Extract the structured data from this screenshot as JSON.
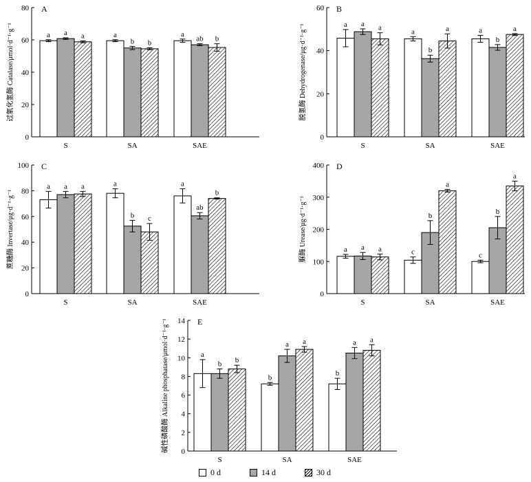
{
  "legend": [
    "0 d",
    "14 d",
    "30 d"
  ],
  "colors": {
    "d0": "#ffffff",
    "d14": "#a6a6a6",
    "d30": "hatch",
    "stroke": "#000000"
  },
  "chart_data": [
    {
      "type": "bar",
      "panel": "A",
      "ylabel": "过氧化氢酶 Catalase/μmol·d⁻¹·g⁻¹",
      "categories": [
        "S",
        "SA",
        "SAE"
      ],
      "ylim": [
        0,
        80
      ],
      "yticks": [
        0,
        20,
        40,
        60,
        80
      ],
      "series": [
        {
          "name": "0 d",
          "values": [
            59.5,
            59.5,
            59.5
          ],
          "errors": [
            0.6,
            0.6,
            1.0
          ],
          "letters": [
            "a",
            "a",
            "a"
          ]
        },
        {
          "name": "14 d",
          "values": [
            60.8,
            55.0,
            57.0
          ],
          "errors": [
            0.5,
            1.0,
            0.6
          ],
          "letters": [
            "a",
            "b",
            "ab"
          ]
        },
        {
          "name": "30 d",
          "values": [
            58.8,
            54.5,
            55.3
          ],
          "errors": [
            0.6,
            0.6,
            2.3
          ],
          "letters": [
            "a",
            "b",
            "b"
          ]
        }
      ]
    },
    {
      "type": "bar",
      "panel": "B",
      "ylabel": "脱氢酶 Dehydrogenase/μg·d⁻¹·g⁻¹",
      "categories": [
        "S",
        "SA",
        "SAE"
      ],
      "ylim": [
        0,
        60
      ],
      "yticks": [
        0,
        20,
        40,
        60
      ],
      "series": [
        {
          "name": "0 d",
          "values": [
            45.8,
            45.5,
            45.5
          ],
          "errors": [
            4.0,
            1.0,
            1.6
          ],
          "letters": [
            "a",
            "a",
            "a"
          ]
        },
        {
          "name": "14 d",
          "values": [
            48.8,
            36.3,
            41.5
          ],
          "errors": [
            1.3,
            1.6,
            1.3
          ],
          "letters": [
            "a",
            "b",
            "b"
          ]
        },
        {
          "name": "30 d",
          "values": [
            45.5,
            44.5,
            47.5
          ],
          "errors": [
            2.8,
            3.3,
            0.4
          ],
          "letters": [
            "a",
            "a",
            "a"
          ]
        }
      ]
    },
    {
      "type": "bar",
      "panel": "C",
      "ylabel": "蔗糖酶 Invertase/μg·d⁻¹·g⁻¹",
      "categories": [
        "S",
        "SA",
        "SAE"
      ],
      "ylim": [
        0,
        100
      ],
      "yticks": [
        0,
        20,
        40,
        60,
        80,
        100
      ],
      "series": [
        {
          "name": "0 d",
          "values": [
            73.0,
            78.0,
            76.0
          ],
          "errors": [
            6.5,
            3.5,
            5.5
          ],
          "letters": [
            "a",
            "a",
            "a"
          ]
        },
        {
          "name": "14 d",
          "values": [
            77.0,
            52.5,
            60.5
          ],
          "errors": [
            2.5,
            4.5,
            2.5
          ],
          "letters": [
            "a",
            "b",
            "ab"
          ]
        },
        {
          "name": "30 d",
          "values": [
            77.5,
            48.0,
            74.0
          ],
          "errors": [
            2.0,
            6.5,
            0.5
          ],
          "letters": [
            "a",
            "c",
            "b"
          ]
        }
      ]
    },
    {
      "type": "bar",
      "panel": "D",
      "ylabel": "脲酶 Urease/μg·d⁻¹·g⁻¹",
      "categories": [
        "S",
        "SA",
        "SAE"
      ],
      "ylim": [
        0,
        400
      ],
      "yticks": [
        0,
        100,
        200,
        300,
        400
      ],
      "series": [
        {
          "name": "0 d",
          "values": [
            116,
            104,
            100
          ],
          "errors": [
            6,
            10,
            4
          ],
          "letters": [
            "a",
            "c",
            "c"
          ]
        },
        {
          "name": "14 d",
          "values": [
            117,
            190,
            205
          ],
          "errors": [
            11,
            37,
            35
          ],
          "letters": [
            "a",
            "b",
            "b"
          ]
        },
        {
          "name": "30 d",
          "values": [
            114,
            320,
            335
          ],
          "errors": [
            9,
            4,
            15
          ],
          "letters": [
            "a",
            "a",
            "a"
          ]
        }
      ]
    },
    {
      "type": "bar",
      "panel": "E",
      "ylabel": "碱性磷酸酶 Alkaline phosphatase/μmol·d⁻¹·g⁻¹",
      "categories": [
        "S",
        "SA",
        "SAE"
      ],
      "ylim": [
        0,
        14
      ],
      "yticks": [
        0,
        2,
        4,
        6,
        8,
        10,
        12,
        14
      ],
      "series": [
        {
          "name": "0 d",
          "values": [
            8.3,
            7.2,
            7.2
          ],
          "errors": [
            1.5,
            0.15,
            0.6
          ],
          "letters": [
            "a",
            "b",
            "b"
          ]
        },
        {
          "name": "14 d",
          "values": [
            8.3,
            10.2,
            10.5
          ],
          "errors": [
            0.5,
            0.7,
            0.6
          ],
          "letters": [
            "b",
            "a",
            "a"
          ]
        },
        {
          "name": "30 d",
          "values": [
            8.8,
            10.9,
            10.8
          ],
          "errors": [
            0.4,
            0.3,
            0.6
          ],
          "letters": [
            "b",
            "a",
            "a"
          ]
        }
      ]
    }
  ]
}
